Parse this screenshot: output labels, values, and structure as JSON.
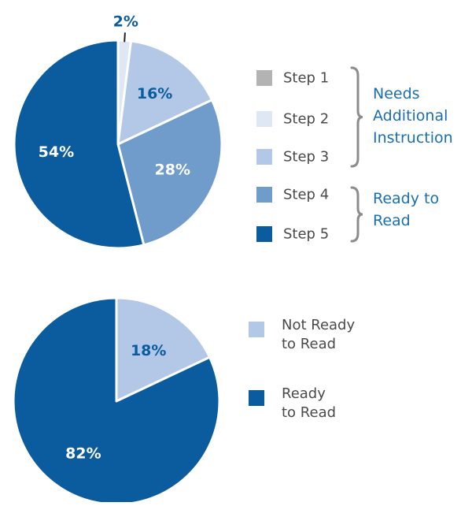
{
  "chart_data": [
    {
      "type": "pie",
      "categories": [
        "Step 1",
        "Step 2",
        "Step 3",
        "Step 4",
        "Step 5"
      ],
      "values": [
        0,
        2,
        16,
        28,
        54
      ],
      "data_labels": [
        "",
        "2%",
        "16%",
        "28%",
        "54%"
      ],
      "colors": [
        "#b3b3b3",
        "#dfe7f4",
        "#b3c7e6",
        "#6f9ccb",
        "#0a5c9e"
      ],
      "label_colors": [
        "#ffffff",
        "#0a5c9e",
        "#0a5c9e",
        "#ffffff",
        "#ffffff"
      ],
      "legend": [
        "Step 1",
        "Step 2",
        "Step 3",
        "Step 4",
        "Step 5"
      ],
      "groups": [
        {
          "label": "Needs Additional Instruction",
          "lines": [
            "Needs",
            "Additional",
            "Instruction"
          ],
          "members": [
            "Step 1",
            "Step 2",
            "Step 3"
          ]
        },
        {
          "label": "Ready to Read",
          "lines": [
            "Ready to",
            "Read"
          ],
          "members": [
            "Step 4",
            "Step 5"
          ]
        }
      ],
      "legend_placement": "right"
    },
    {
      "type": "pie",
      "categories": [
        "Not Ready to Read",
        "Ready to Read"
      ],
      "values": [
        18,
        82
      ],
      "data_labels": [
        "18%",
        "82%"
      ],
      "colors": [
        "#b3c7e6",
        "#0a5c9e"
      ],
      "label_colors": [
        "#0a5c9e",
        "#ffffff"
      ],
      "legend": [
        [
          "Not Ready",
          "to Read"
        ],
        [
          "Ready",
          "to Read"
        ]
      ],
      "legend_placement": "right"
    }
  ]
}
